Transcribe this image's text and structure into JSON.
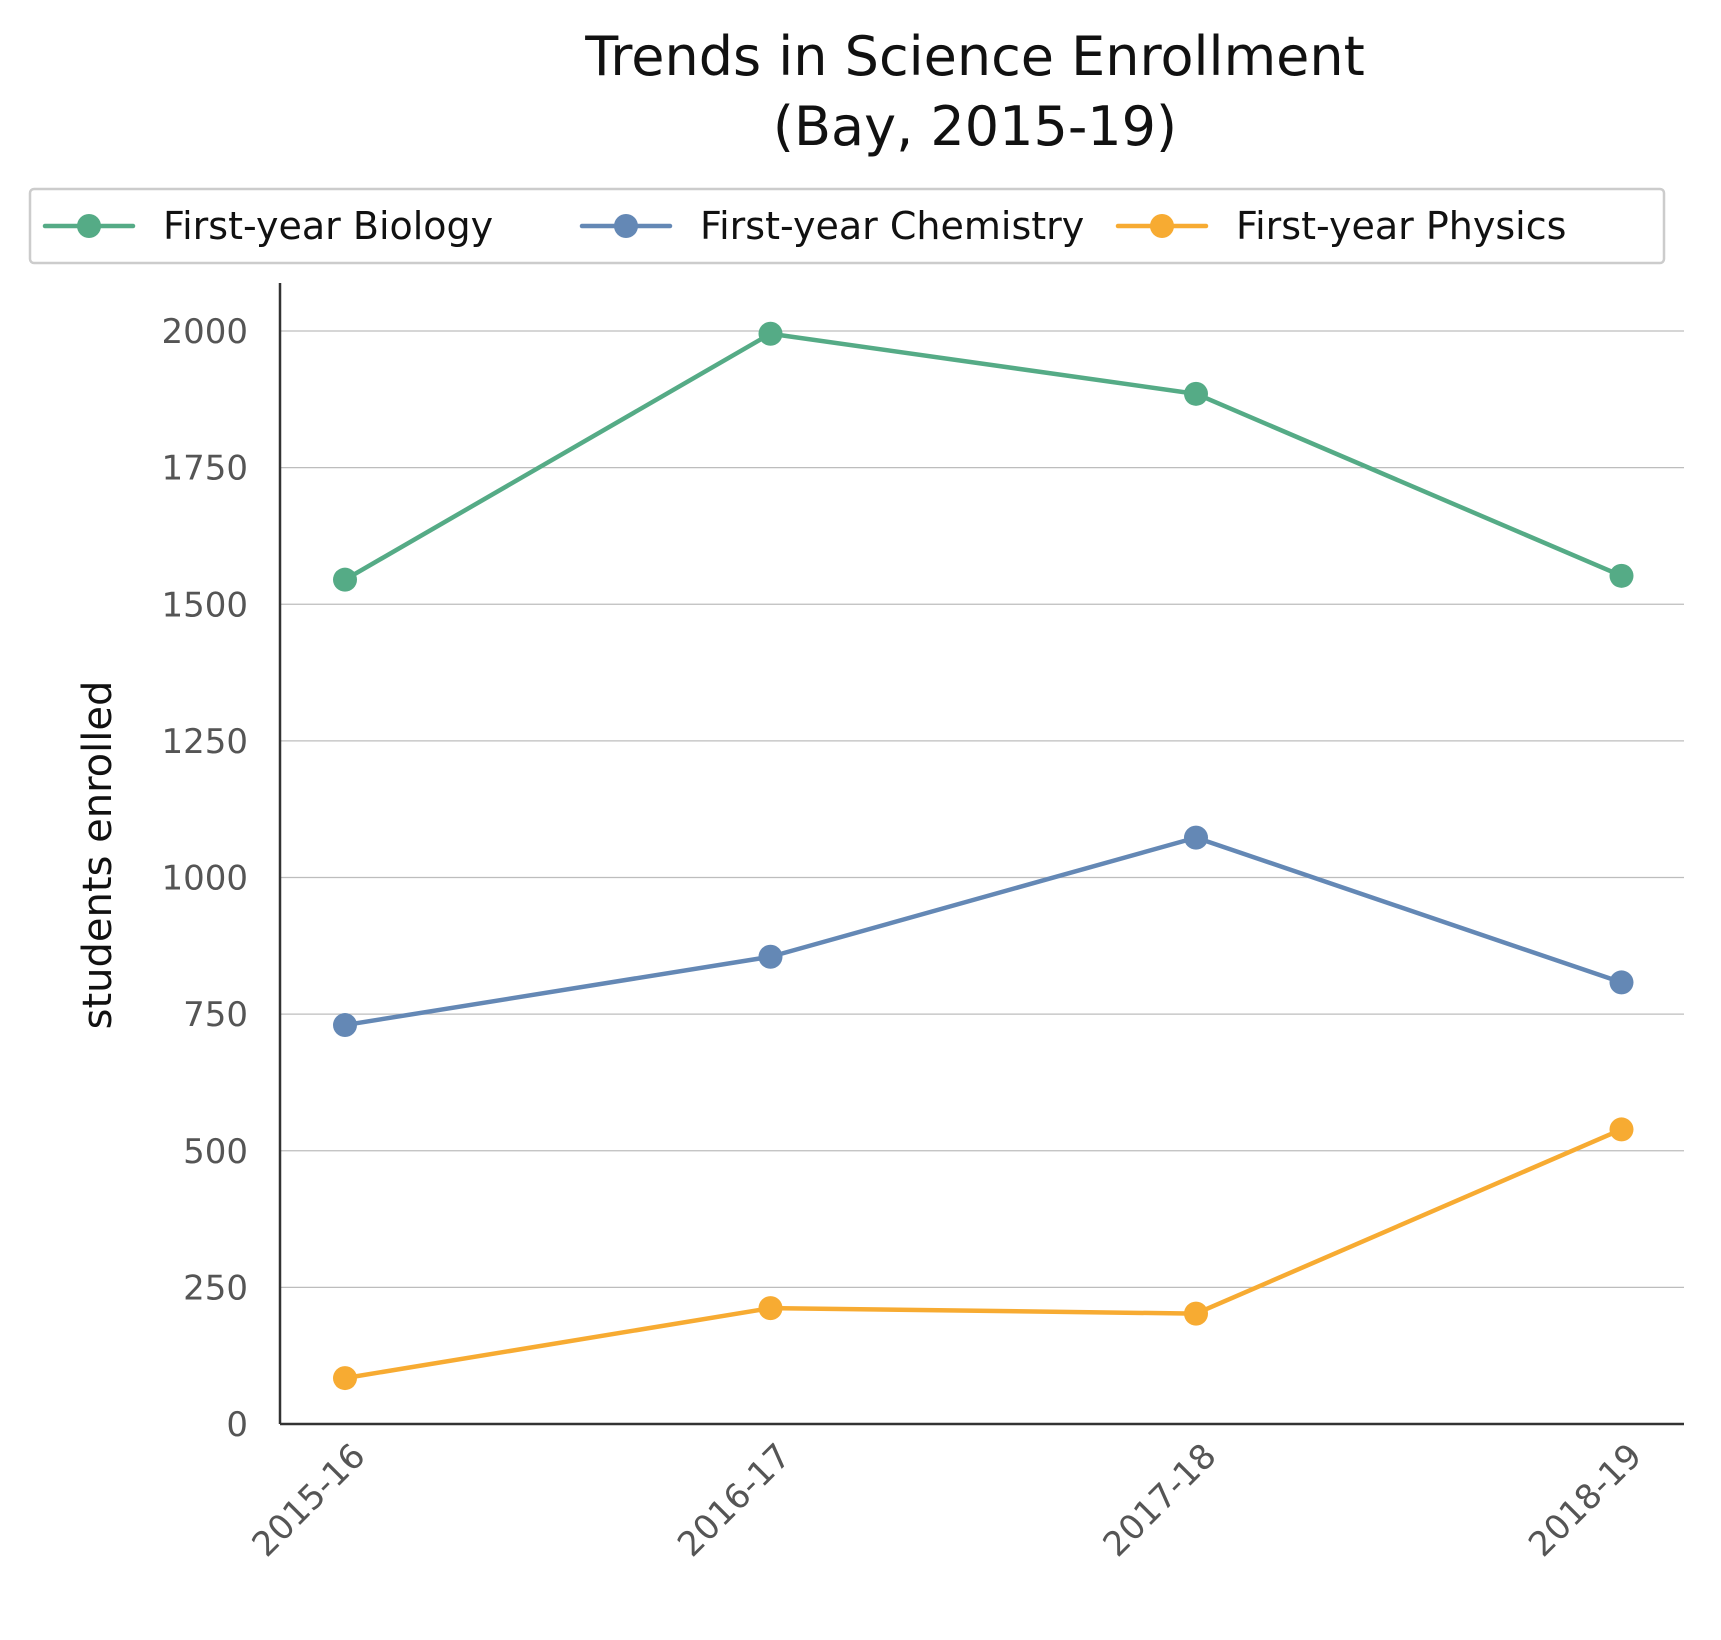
{
  "chart_data": {
    "type": "line",
    "title": "Trends in Science Enrollment",
    "subtitle": "(Bay, 2015-19)",
    "xlabel": "",
    "ylabel": "students enrolled",
    "categories": [
      "2015-16",
      "2016-17",
      "2017-18",
      "2018-19"
    ],
    "y_ticks": [
      0,
      250,
      500,
      750,
      1000,
      1250,
      1500,
      1750,
      2000
    ],
    "ylim": [
      0,
      2090
    ],
    "grid": "horizontal",
    "legend_position": "top",
    "series": [
      {
        "name": "First-year Biology",
        "color": "#55ab86",
        "values": [
          1545,
          1995,
          1885,
          1552
        ]
      },
      {
        "name": "First-year Chemistry",
        "color": "#6488b5",
        "values": [
          730,
          855,
          1073,
          808
        ]
      },
      {
        "name": "First-year Physics",
        "color": "#f7ab32",
        "values": [
          84,
          212,
          202,
          539
        ]
      }
    ]
  }
}
